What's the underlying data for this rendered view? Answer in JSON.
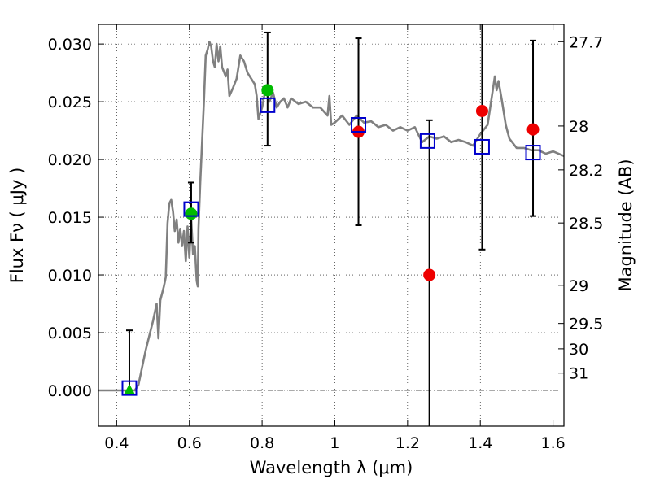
{
  "chart_data": {
    "type": "scatter",
    "xlabel": "Wavelength  λ (μm)",
    "ylabel": "Flux  Fν  ( μJy )",
    "ylabel_right": "Magnitude (AB)",
    "xlim": [
      0.35,
      1.63
    ],
    "ylim": [
      -0.0031,
      0.0317
    ],
    "x_ticks": [
      0.4,
      0.6,
      0.8,
      1.0,
      1.2,
      1.4,
      1.6
    ],
    "x_tick_labels": [
      "0.4",
      "0.6",
      "0.8",
      "1",
      "1.2",
      "1.4",
      "1.6"
    ],
    "y_ticks": [
      0.0,
      0.005,
      0.01,
      0.015,
      0.02,
      0.025,
      0.03
    ],
    "y_tick_labels": [
      "0.000",
      "0.005",
      "0.010",
      "0.015",
      "0.020",
      "0.025",
      "0.030"
    ],
    "mag_ticks": [
      {
        "label": "27.7",
        "flux": 0.0302
      },
      {
        "label": "28",
        "flux": 0.0229
      },
      {
        "label": "28.2",
        "flux": 0.0191
      },
      {
        "label": "28.5",
        "flux": 0.0145
      },
      {
        "label": "29",
        "flux": 0.0091
      },
      {
        "label": "29.5",
        "flux": 0.0058
      },
      {
        "label": "30",
        "flux": 0.0036
      },
      {
        "label": "31",
        "flux": 0.0015
      }
    ],
    "grid": true,
    "colors": {
      "spectrum": "#808080",
      "observed": "#ee0000",
      "observed_alt": "#00bb00",
      "model_box": "#0000cc",
      "errorbar": "#000000",
      "zero_line": "#555555"
    },
    "series": [
      {
        "marker": "line",
        "x": [
          0.35,
          0.45,
          0.46,
          0.47,
          0.48,
          0.5,
          0.51,
          0.515,
          0.52,
          0.53,
          0.535,
          0.54,
          0.545,
          0.55,
          0.555,
          0.56,
          0.565,
          0.57,
          0.575,
          0.58,
          0.585,
          0.59,
          0.595,
          0.6,
          0.605,
          0.61,
          0.615,
          0.62,
          0.623,
          0.625,
          0.63,
          0.64,
          0.645,
          0.65,
          0.655,
          0.66,
          0.665,
          0.67,
          0.675,
          0.68,
          0.685,
          0.69,
          0.7,
          0.705,
          0.71,
          0.72,
          0.73,
          0.74,
          0.75,
          0.76,
          0.77,
          0.78,
          0.785,
          0.79,
          0.8,
          0.81,
          0.82,
          0.83,
          0.84,
          0.85,
          0.86,
          0.87,
          0.88,
          0.9,
          0.92,
          0.94,
          0.96,
          0.98,
          0.985,
          0.99,
          1.0,
          1.02,
          1.04,
          1.06,
          1.08,
          1.1,
          1.12,
          1.14,
          1.16,
          1.18,
          1.2,
          1.22,
          1.24,
          1.26,
          1.28,
          1.3,
          1.32,
          1.34,
          1.36,
          1.38,
          1.4,
          1.42,
          1.44,
          1.445,
          1.45,
          1.46,
          1.47,
          1.48,
          1.5,
          1.52,
          1.54,
          1.56,
          1.58,
          1.6,
          1.63
        ],
        "y": [
          0.0,
          0.0,
          0.0005,
          0.002,
          0.0035,
          0.006,
          0.0075,
          0.0045,
          0.0078,
          0.009,
          0.0098,
          0.0145,
          0.0162,
          0.0165,
          0.0155,
          0.0138,
          0.0148,
          0.0128,
          0.014,
          0.0125,
          0.0138,
          0.0112,
          0.0142,
          0.0115,
          0.0148,
          0.0118,
          0.0125,
          0.0095,
          0.009,
          0.014,
          0.018,
          0.025,
          0.029,
          0.0295,
          0.0302,
          0.0298,
          0.0285,
          0.028,
          0.03,
          0.0285,
          0.0298,
          0.028,
          0.0272,
          0.0278,
          0.0255,
          0.0262,
          0.027,
          0.029,
          0.0285,
          0.0275,
          0.027,
          0.0265,
          0.0255,
          0.0235,
          0.0245,
          0.0262,
          0.025,
          0.0258,
          0.0245,
          0.025,
          0.0253,
          0.0245,
          0.0253,
          0.0248,
          0.025,
          0.0245,
          0.0245,
          0.0238,
          0.0255,
          0.023,
          0.0232,
          0.0238,
          0.023,
          0.0238,
          0.0232,
          0.0233,
          0.0228,
          0.023,
          0.0225,
          0.0228,
          0.0225,
          0.0228,
          0.0215,
          0.022,
          0.0218,
          0.022,
          0.0215,
          0.0217,
          0.0215,
          0.0212,
          0.0222,
          0.023,
          0.0272,
          0.026,
          0.0268,
          0.025,
          0.023,
          0.0218,
          0.021,
          0.021,
          0.0208,
          0.0208,
          0.0205,
          0.0207,
          0.0203
        ]
      },
      {
        "marker": "square-open",
        "x": [
          0.435,
          0.605,
          0.815,
          1.065,
          1.255,
          1.405,
          1.545
        ],
        "y": [
          0.0002,
          0.0157,
          0.0247,
          0.023,
          0.0216,
          0.0211,
          0.0206
        ]
      },
      {
        "marker": "circle",
        "x": [
          0.605,
          0.815,
          1.065,
          1.26,
          1.405,
          1.545
        ],
        "y": [
          0.0153,
          0.026,
          0.0224,
          0.01,
          0.0242,
          0.0226
        ],
        "colors": [
          "#00bb00",
          "#00bb00",
          "#ee0000",
          "#ee0000",
          "#ee0000",
          "#ee0000"
        ],
        "yerr_low": [
          0.0128,
          0.0212,
          0.0143,
          -0.0031,
          0.0122,
          0.0151
        ],
        "yerr_high": [
          0.018,
          0.031,
          0.0305,
          0.0234,
          0.0317,
          0.0303
        ]
      },
      {
        "marker": "triangle",
        "x": [
          0.435
        ],
        "y": [
          0.0
        ],
        "yerr_high": [
          0.0052
        ]
      }
    ]
  }
}
